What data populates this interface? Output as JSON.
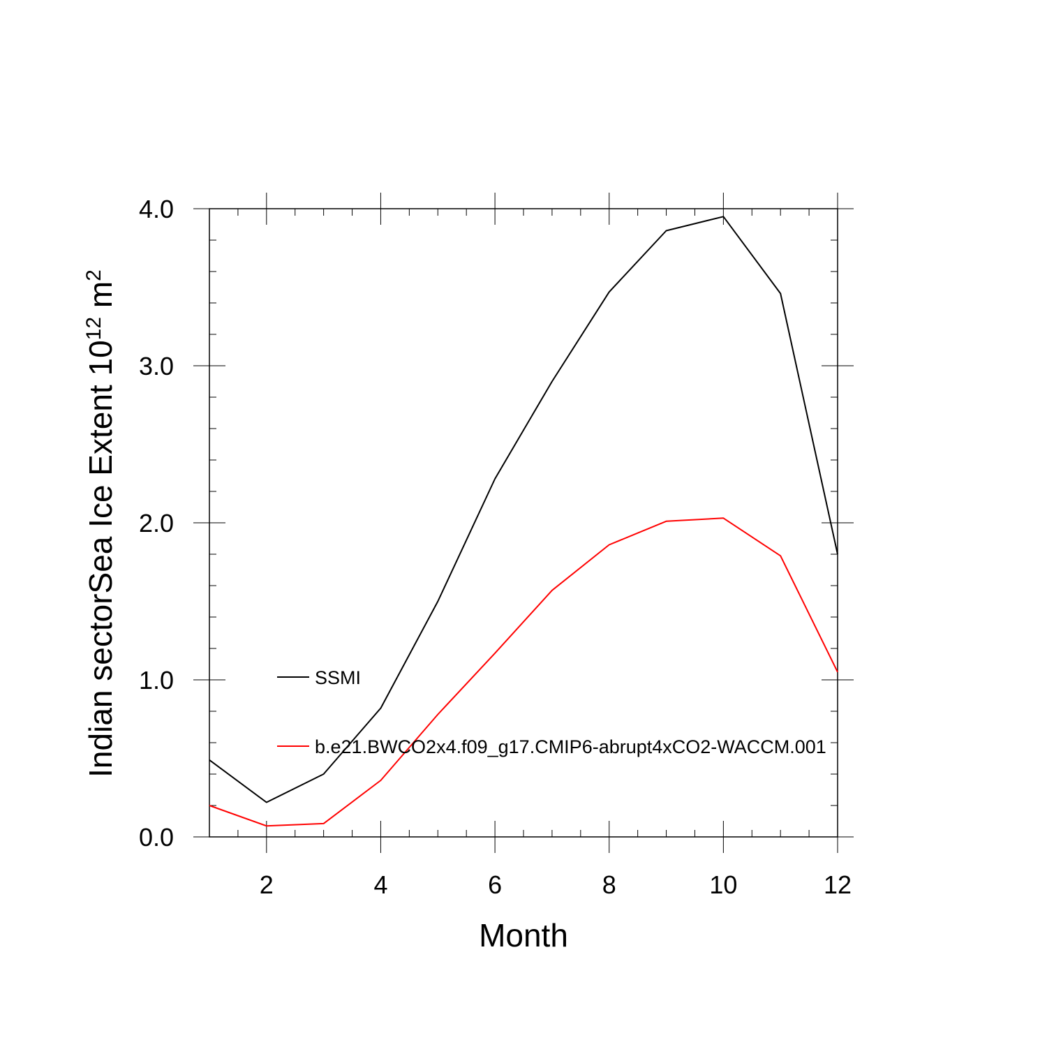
{
  "chart_data": {
    "type": "line",
    "title": "",
    "xlabel": "Month",
    "ylabel": {
      "base": "Indian sectorSea Ice Extent 10",
      "exponent": "12",
      "unit": " m",
      "unit_exponent": "2"
    },
    "xlim": [
      1,
      12
    ],
    "ylim": [
      0,
      4
    ],
    "xticks": [
      2,
      4,
      6,
      8,
      10,
      12
    ],
    "xtick_labels": [
      "2",
      "4",
      "6",
      "8",
      "10",
      "12"
    ],
    "yticks": [
      0,
      1,
      2,
      3,
      4
    ],
    "ytick_labels": [
      "0.0",
      "1.0",
      "2.0",
      "3.0",
      "4.0"
    ],
    "grid": false,
    "legend_position": "inside, lower-left",
    "x": [
      1,
      2,
      3,
      4,
      5,
      6,
      7,
      8,
      9,
      10,
      11,
      12
    ],
    "series": [
      {
        "name": "SSMI",
        "color": "#000000",
        "values": [
          0.49,
          0.22,
          0.4,
          0.82,
          1.5,
          2.28,
          2.9,
          3.47,
          3.86,
          3.95,
          3.46,
          1.8
        ]
      },
      {
        "name": "b.e21.BWCO2x4.f09_g17.CMIP6-abrupt4xCO2-WACCM.001",
        "color": "#ff0000",
        "values": [
          0.2,
          0.07,
          0.085,
          0.36,
          0.78,
          1.17,
          1.57,
          1.86,
          2.01,
          2.03,
          1.79,
          1.05
        ]
      }
    ]
  }
}
